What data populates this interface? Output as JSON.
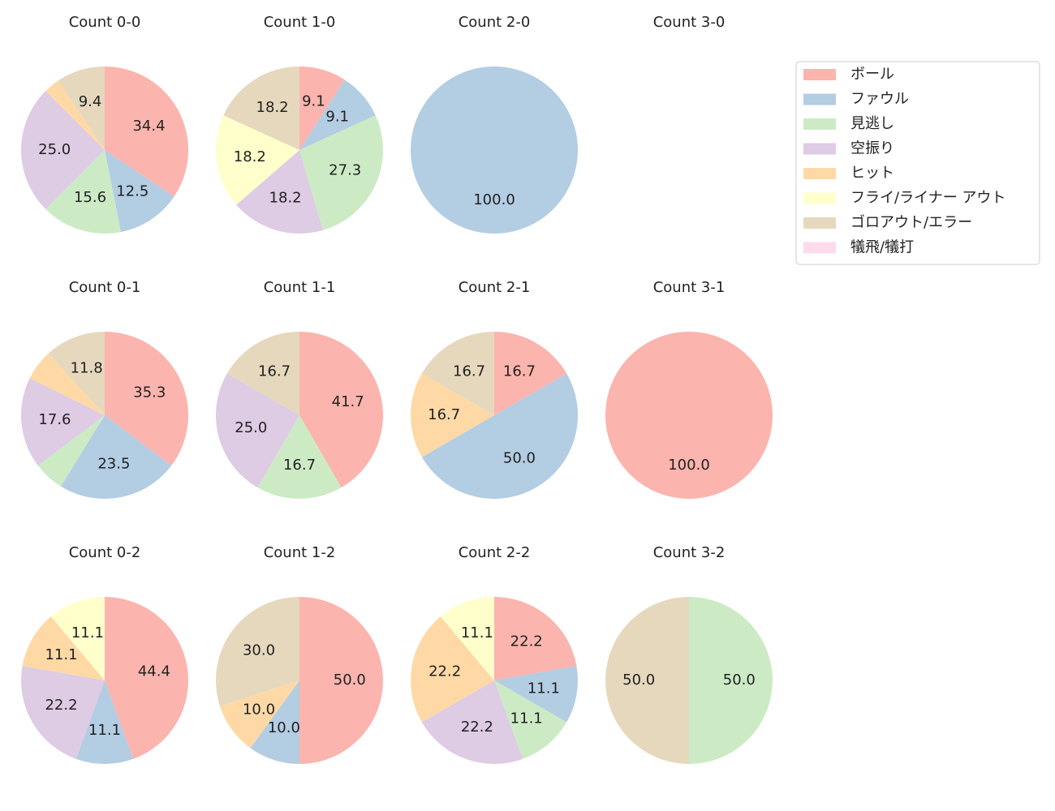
{
  "chart_data": [
    {
      "type": "pie",
      "title": "Count 0-0",
      "categories": [
        "ボール",
        "ファウル",
        "見逃し",
        "空振り",
        "ヒット",
        "ゴロアウト/エラー"
      ],
      "values": [
        34.4,
        12.5,
        15.6,
        25.0,
        3.1,
        9.4
      ],
      "value_labels": [
        "34.4",
        "12.5",
        "15.6",
        "25.0",
        null,
        "9.4"
      ]
    },
    {
      "type": "pie",
      "title": "Count 1-0",
      "categories": [
        "ボール",
        "ファウル",
        "見逃し",
        "空振り",
        "フライ/ライナー アウト",
        "ゴロアウト/エラー"
      ],
      "values": [
        9.1,
        9.1,
        27.3,
        18.2,
        18.2,
        18.2
      ],
      "value_labels": [
        "9.1",
        "9.1",
        "27.3",
        "18.2",
        "18.2",
        "18.2"
      ]
    },
    {
      "type": "pie",
      "title": "Count 2-0",
      "categories": [
        "ファウル"
      ],
      "values": [
        100.0
      ],
      "value_labels": [
        "100.0"
      ]
    },
    {
      "type": "pie",
      "title": "Count 3-0",
      "categories": [],
      "values": [],
      "value_labels": []
    },
    {
      "type": "pie",
      "title": "Count 0-1",
      "categories": [
        "ボール",
        "ファウル",
        "見逃し",
        "空振り",
        "ヒット",
        "ゴロアウト/エラー"
      ],
      "values": [
        35.3,
        23.5,
        5.9,
        17.6,
        5.9,
        11.8
      ],
      "value_labels": [
        "35.3",
        "23.5",
        null,
        "17.6",
        null,
        "11.8"
      ]
    },
    {
      "type": "pie",
      "title": "Count 1-1",
      "categories": [
        "ボール",
        "見逃し",
        "空振り",
        "ゴロアウト/エラー"
      ],
      "values": [
        41.7,
        16.7,
        25.0,
        16.7
      ],
      "value_labels": [
        "41.7",
        "16.7",
        "25.0",
        "16.7"
      ]
    },
    {
      "type": "pie",
      "title": "Count 2-1",
      "categories": [
        "ボール",
        "ファウル",
        "ヒット",
        "ゴロアウト/エラー"
      ],
      "values": [
        16.7,
        50.0,
        16.7,
        16.7
      ],
      "value_labels": [
        "16.7",
        "50.0",
        "16.7",
        "16.7"
      ]
    },
    {
      "type": "pie",
      "title": "Count 3-1",
      "categories": [
        "ボール"
      ],
      "values": [
        100.0
      ],
      "value_labels": [
        "100.0"
      ]
    },
    {
      "type": "pie",
      "title": "Count 0-2",
      "categories": [
        "ボール",
        "ファウル",
        "空振り",
        "ヒット",
        "フライ/ライナー アウト"
      ],
      "values": [
        44.4,
        11.1,
        22.2,
        11.1,
        11.1
      ],
      "value_labels": [
        "44.4",
        "11.1",
        "22.2",
        "11.1",
        "11.1"
      ]
    },
    {
      "type": "pie",
      "title": "Count 1-2",
      "categories": [
        "ボール",
        "ファウル",
        "ヒット",
        "ゴロアウト/エラー"
      ],
      "values": [
        50.0,
        10.0,
        10.0,
        30.0
      ],
      "value_labels": [
        "50.0",
        "10.0",
        "10.0",
        "30.0"
      ]
    },
    {
      "type": "pie",
      "title": "Count 2-2",
      "categories": [
        "ボール",
        "ファウル",
        "見逃し",
        "空振り",
        "ヒット",
        "フライ/ライナー アウト"
      ],
      "values": [
        22.2,
        11.1,
        11.1,
        22.2,
        22.2,
        11.1
      ],
      "value_labels": [
        "22.2",
        "11.1",
        "11.1",
        "22.2",
        "22.2",
        "11.1"
      ]
    },
    {
      "type": "pie",
      "title": "Count 3-2",
      "categories": [
        "見逃し",
        "ゴロアウト/エラー"
      ],
      "values": [
        50.0,
        50.0
      ],
      "value_labels": [
        "50.0",
        "50.0"
      ]
    }
  ],
  "legend": {
    "entries": [
      {
        "name": "ボール",
        "color": "#fbb4ae"
      },
      {
        "name": "ファウル",
        "color": "#b3cde3"
      },
      {
        "name": "見逃し",
        "color": "#ccebc5"
      },
      {
        "name": "空振り",
        "color": "#decbe4"
      },
      {
        "name": "ヒット",
        "color": "#fed9a6"
      },
      {
        "name": "フライ/ライナー アウト",
        "color": "#ffffcc"
      },
      {
        "name": "ゴロアウト/エラー",
        "color": "#e5d8bd"
      },
      {
        "name": "犠飛/犠打",
        "color": "#fddaec"
      }
    ]
  }
}
